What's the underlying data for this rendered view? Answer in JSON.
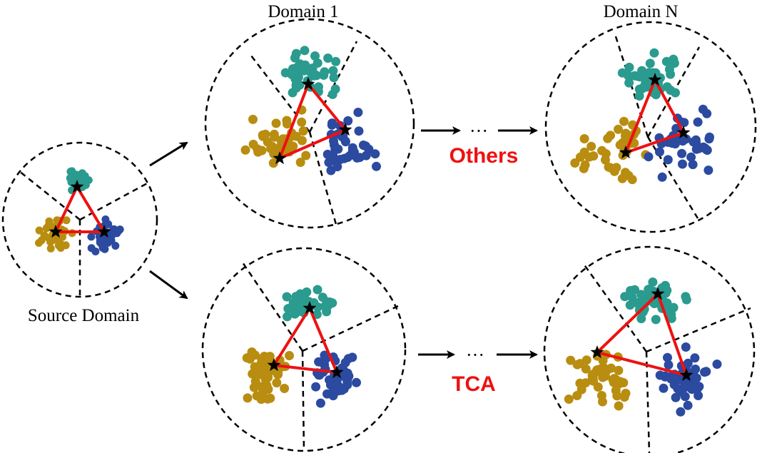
{
  "labels": {
    "domain_1": "Domain 1",
    "domain_n": "Domain N",
    "source_domain": "Source Domain",
    "method_others": "Others",
    "method_tca": "TCA",
    "ellipsis": "···"
  },
  "colors": {
    "teal": "#2a9b8e",
    "gold": "#b88d10",
    "blue": "#2b4aa0",
    "red_triangle": "#ee1111",
    "red_text": "#ee1111",
    "dashed_line": "#000000"
  },
  "legend_classes": [
    "teal-class",
    "gold-class",
    "blue-class"
  ],
  "icons": {
    "star": "star-icon",
    "arrow": "arrow-icon"
  }
}
